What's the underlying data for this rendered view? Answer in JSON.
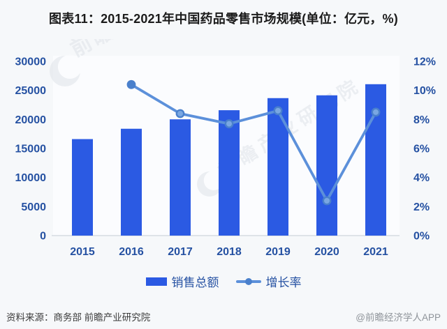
{
  "title": "图表11：2015-2021年中国药品零售市场规模(单位：亿元，%)",
  "chart_data": {
    "type": "combo-bar-line",
    "title": "2015-2021年中国药品零售市场规模",
    "unit": "亿元，%",
    "categories": [
      "2015",
      "2016",
      "2017",
      "2018",
      "2019",
      "2020",
      "2021"
    ],
    "series": [
      {
        "name": "销售总额",
        "type": "bar",
        "axis": "left",
        "unit": "亿元",
        "values": [
          16613,
          18393,
          20016,
          21586,
          23667,
          24149,
          26064
        ]
      },
      {
        "name": "增长率",
        "type": "line",
        "axis": "right",
        "unit": "%",
        "values": [
          null,
          10.4,
          8.4,
          7.7,
          8.6,
          2.4,
          8.5
        ]
      }
    ],
    "left_axis": {
      "min": 0,
      "max": 30000,
      "step": 5000,
      "tick_labels": [
        "0",
        "5000",
        "10000",
        "15000",
        "20000",
        "25000",
        "30000"
      ]
    },
    "right_axis": {
      "min": 0,
      "max": 12,
      "step": 2,
      "tick_labels": [
        "0%",
        "2%",
        "4%",
        "6%",
        "8%",
        "10%",
        "12%"
      ]
    },
    "grid": false,
    "legend_position": "bottom"
  },
  "watermarks": [
    {
      "text": "前瞻"
    },
    {
      "text": "前瞻产业研究院"
    }
  ],
  "footer": {
    "source": "资料来源：商务部 前瞻产业研究院",
    "credit": "@前瞻经济学人APP"
  },
  "colors": {
    "bar": "#2b5ae3",
    "line": "#5c90da",
    "marker_fill": "#7aa7e2",
    "marker_stroke": "#4a80cc",
    "axis_text": "#2551a2",
    "title_text": "#1b1b1b",
    "source_text": "#3c3c3c",
    "credit_text": "#8f949a",
    "axis_line": "#d6dbe1",
    "background": "#f6f8fa",
    "plot_background": "#fbfcfe",
    "watermark": "#dfe3e9"
  }
}
